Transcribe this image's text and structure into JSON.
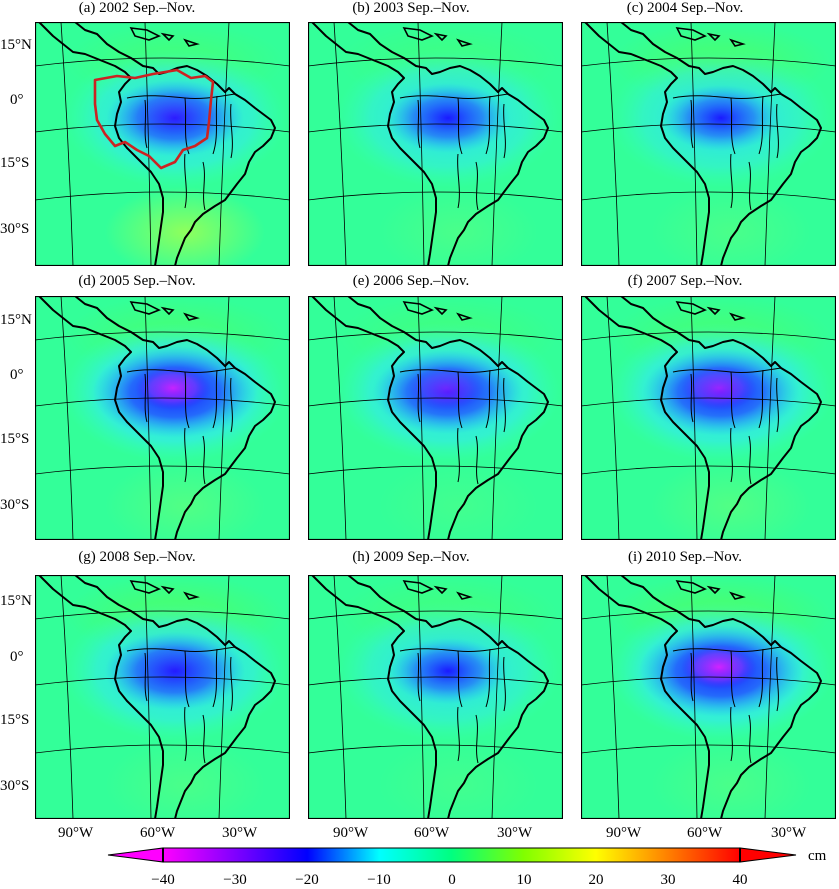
{
  "panels": [
    {
      "title": "(a) 2002 Sep.–Nov.",
      "intensity": 0.78,
      "pink": 0.1,
      "basin_outline": true,
      "north_green": 0.35,
      "south_yellow": 0.6
    },
    {
      "title": "(b) 2003 Sep.–Nov.",
      "intensity": 0.7,
      "pink": 0.0,
      "basin_outline": false,
      "north_green": 0.25,
      "south_yellow": 0.15
    },
    {
      "title": "(c) 2004 Sep.–Nov.",
      "intensity": 0.66,
      "pink": 0.0,
      "basin_outline": false,
      "north_green": 0.45,
      "south_yellow": 0.15
    },
    {
      "title": "(d) 2005 Sep.–Nov.",
      "intensity": 0.95,
      "pink": 0.75,
      "basin_outline": false,
      "north_green": 0.4,
      "south_yellow": 0.2
    },
    {
      "title": "(e) 2006 Sep.–Nov.",
      "intensity": 0.86,
      "pink": 0.35,
      "basin_outline": false,
      "north_green": 0.3,
      "south_yellow": 0.1
    },
    {
      "title": "(f) 2007 Sep.–Nov.",
      "intensity": 0.9,
      "pink": 0.55,
      "basin_outline": false,
      "north_green": 0.4,
      "south_yellow": 0.2
    },
    {
      "title": "(g) 2008 Sep.–Nov.",
      "intensity": 0.8,
      "pink": 0.05,
      "basin_outline": false,
      "north_green": 0.5,
      "south_yellow": 0.15
    },
    {
      "title": "(h) 2009 Sep.–Nov.",
      "intensity": 0.66,
      "pink": 0.0,
      "basin_outline": false,
      "north_green": 0.3,
      "south_yellow": 0.1
    },
    {
      "title": "(i) 2010 Sep.–Nov.",
      "intensity": 0.95,
      "pink": 0.8,
      "basin_outline": false,
      "north_green": 0.5,
      "south_yellow": 0.15
    }
  ],
  "lat_labels": [
    "15°N",
    "0°",
    "15°S",
    "30°S"
  ],
  "lon_labels": [
    "90°W",
    "60°W",
    "30°W"
  ],
  "colorbar": {
    "unit": "cm",
    "min": -40,
    "max": 40,
    "ticks": [
      "−40",
      "−30",
      "−20",
      "−10",
      "0",
      "10",
      "20",
      "30",
      "40"
    ],
    "colors": [
      "#ff00ff",
      "#8000ff",
      "#0000ff",
      "#00ffff",
      "#00ff80",
      "#80ff00",
      "#ffff00",
      "#ff8000",
      "#ff0000"
    ]
  },
  "colors": {
    "background": "#33ff99",
    "basin_outline": "#cc2222"
  }
}
